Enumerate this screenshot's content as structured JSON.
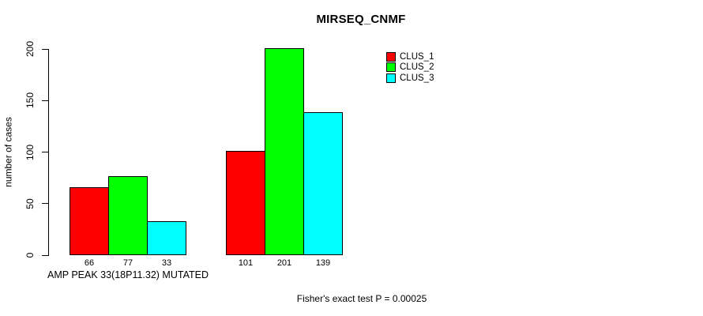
{
  "chart_data": {
    "type": "bar",
    "title": "MIRSEQ_CNMF",
    "ylabel": "number of cases",
    "xlabel": "",
    "categories": [
      "AMP PEAK 33(18P11.32) MUTATED",
      ""
    ],
    "series": [
      {
        "name": "CLUS_1",
        "color": "#FF0000",
        "values": [
          66,
          101
        ]
      },
      {
        "name": "CLUS_2",
        "color": "#00FF00",
        "values": [
          77,
          201
        ]
      },
      {
        "name": "CLUS_3",
        "color": "#00FFFF",
        "values": [
          33,
          139
        ]
      }
    ],
    "yticks": [
      0,
      50,
      100,
      150,
      200
    ],
    "ylim": [
      0,
      201
    ],
    "grid": false,
    "bar_value_labels_shown": true,
    "legend_position": "top-right",
    "annotation": "Fisher's exact test P = 0.00025",
    "axis_color": "#000000",
    "background_color": "#FFFFFF"
  }
}
